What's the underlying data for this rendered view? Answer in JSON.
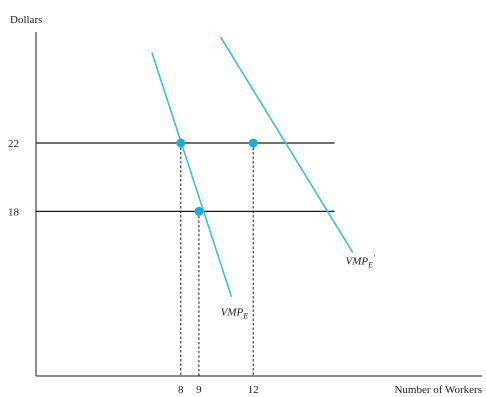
{
  "chart_data": {
    "type": "line",
    "ylabel": "Dollars",
    "xlabel": "Number of Workers",
    "y_ticks": [
      {
        "value": 22,
        "label": "22"
      },
      {
        "value": 18,
        "label": "18"
      }
    ],
    "x_ticks": [
      {
        "value": 8,
        "label": "8"
      },
      {
        "value": 9,
        "label": "9"
      },
      {
        "value": 12,
        "label": "12"
      }
    ],
    "horizontal_lines": [
      {
        "y": 22,
        "x_end": 16.5
      },
      {
        "y": 18,
        "x_end": 16.5
      }
    ],
    "drop_lines": [
      {
        "x": 8,
        "y": 22
      },
      {
        "x": 9,
        "y": 18
      },
      {
        "x": 12,
        "y": 22
      }
    ],
    "series": [
      {
        "id": "vmp_e",
        "label_main": "VMP",
        "label_sub": "E",
        "label_prime": "",
        "color": "#39bde8",
        "x": [
          6.4,
          10.8
        ],
        "y": [
          27.3,
          13.0
        ],
        "points": [
          {
            "x": 8,
            "y": 22
          },
          {
            "x": 9,
            "y": 18
          }
        ],
        "label_at": {
          "x": 10.2,
          "y": 11.9
        }
      },
      {
        "id": "vmp_e_prime",
        "label_main": "VMP",
        "label_sub": "E",
        "label_prime": "′",
        "color": "#39bde8",
        "x": [
          10.2,
          17.5
        ],
        "y": [
          28.2,
          15.6
        ],
        "points": [
          {
            "x": 12,
            "y": 22
          }
        ],
        "label_at": {
          "x": 17.1,
          "y": 14.9
        }
      }
    ],
    "xlim": [
      0,
      18.2
    ],
    "ylim": [
      7.5,
      31.5
    ],
    "grid": false,
    "dot_color": "#1ea9e0"
  }
}
